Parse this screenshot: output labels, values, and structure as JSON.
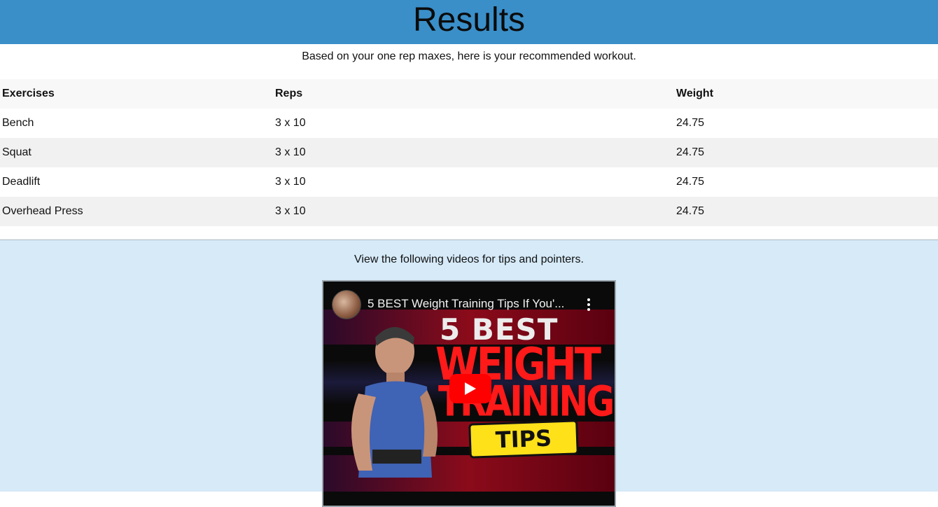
{
  "header": {
    "title": "Results"
  },
  "intro_text": "Based on your one rep maxes, here is your recommended workout.",
  "table": {
    "columns": [
      "Exercises",
      "Reps",
      "Weight"
    ],
    "rows": [
      [
        "Bench",
        "3 x 10",
        "24.75"
      ],
      [
        "Squat",
        "3 x 10",
        "24.75"
      ],
      [
        "Deadlift",
        "3 x 10",
        "24.75"
      ],
      [
        "Overhead Press",
        "3 x 10",
        "24.75"
      ]
    ]
  },
  "videos": {
    "intro_text": "View the following videos for tips and pointers.",
    "video": {
      "title": "5 BEST Weight Training Tips If You'...",
      "thumbnail_text": {
        "line1": "5 BEST",
        "line2": "WEIGHT",
        "line3": "TRAINING",
        "badge": "TIPS"
      },
      "more_icon": "more-vert-icon",
      "play_icon": "youtube-play-icon"
    }
  },
  "colors": {
    "header_bg": "#3a8fc9",
    "videos_bg": "#d6eaf8",
    "play_red": "#ff0000",
    "thumb_red": "#ff1a1a",
    "badge_yellow": "#ffe11a"
  }
}
